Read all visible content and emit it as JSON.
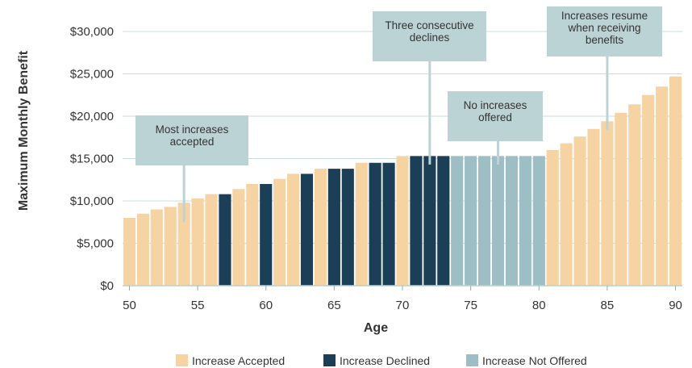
{
  "chart_data": {
    "type": "bar",
    "ylabel": "Maximum Monthly Benefit",
    "xlabel": "Age",
    "ylim": [
      0,
      30000
    ],
    "y_ticks": [
      "$0",
      "$5,000",
      "$10,000",
      "$15,000",
      "$20,000",
      "$25,000",
      "$30,000"
    ],
    "y_tick_values": [
      0,
      5000,
      10000,
      15000,
      20000,
      25000,
      30000
    ],
    "x_ticks": [
      "50",
      "55",
      "60",
      "65",
      "70",
      "75",
      "80",
      "85",
      "90"
    ],
    "x_tick_values": [
      50,
      55,
      60,
      65,
      70,
      75,
      80,
      85,
      90
    ],
    "grid": "horizontal",
    "legend_position": "bottom-center",
    "colors": {
      "Increase Accepted": "#f6d3a3",
      "Increase Declined": "#1b3f57",
      "Increase Not Offered": "#9cbec4",
      "annotation_box": "#bcd3d6"
    },
    "legend": [
      "Increase Accepted",
      "Increase Declined",
      "Increase Not Offered"
    ],
    "bars": [
      {
        "age": 50,
        "value": 8000,
        "status": "Increase Accepted"
      },
      {
        "age": 51,
        "value": 8500,
        "status": "Increase Accepted"
      },
      {
        "age": 52,
        "value": 9000,
        "status": "Increase Accepted"
      },
      {
        "age": 53,
        "value": 9300,
        "status": "Increase Accepted"
      },
      {
        "age": 54,
        "value": 9800,
        "status": "Increase Accepted"
      },
      {
        "age": 55,
        "value": 10300,
        "status": "Increase Accepted"
      },
      {
        "age": 56,
        "value": 10800,
        "status": "Increase Accepted"
      },
      {
        "age": 57,
        "value": 10800,
        "status": "Increase Declined"
      },
      {
        "age": 58,
        "value": 11400,
        "status": "Increase Accepted"
      },
      {
        "age": 59,
        "value": 12000,
        "status": "Increase Accepted"
      },
      {
        "age": 60,
        "value": 12000,
        "status": "Increase Declined"
      },
      {
        "age": 61,
        "value": 12600,
        "status": "Increase Accepted"
      },
      {
        "age": 62,
        "value": 13200,
        "status": "Increase Accepted"
      },
      {
        "age": 63,
        "value": 13200,
        "status": "Increase Declined"
      },
      {
        "age": 64,
        "value": 13800,
        "status": "Increase Accepted"
      },
      {
        "age": 65,
        "value": 13800,
        "status": "Increase Declined"
      },
      {
        "age": 66,
        "value": 13800,
        "status": "Increase Declined"
      },
      {
        "age": 67,
        "value": 14500,
        "status": "Increase Accepted"
      },
      {
        "age": 68,
        "value": 14500,
        "status": "Increase Declined"
      },
      {
        "age": 69,
        "value": 14500,
        "status": "Increase Declined"
      },
      {
        "age": 70,
        "value": 15300,
        "status": "Increase Accepted"
      },
      {
        "age": 71,
        "value": 15300,
        "status": "Increase Declined"
      },
      {
        "age": 72,
        "value": 15300,
        "status": "Increase Declined"
      },
      {
        "age": 73,
        "value": 15300,
        "status": "Increase Declined"
      },
      {
        "age": 74,
        "value": 15300,
        "status": "Increase Not Offered"
      },
      {
        "age": 75,
        "value": 15300,
        "status": "Increase Not Offered"
      },
      {
        "age": 76,
        "value": 15300,
        "status": "Increase Not Offered"
      },
      {
        "age": 77,
        "value": 15300,
        "status": "Increase Not Offered"
      },
      {
        "age": 78,
        "value": 15300,
        "status": "Increase Not Offered"
      },
      {
        "age": 79,
        "value": 15300,
        "status": "Increase Not Offered"
      },
      {
        "age": 80,
        "value": 15300,
        "status": "Increase Not Offered"
      },
      {
        "age": 81,
        "value": 16000,
        "status": "Increase Accepted"
      },
      {
        "age": 82,
        "value": 16800,
        "status": "Increase Accepted"
      },
      {
        "age": 83,
        "value": 17600,
        "status": "Increase Accepted"
      },
      {
        "age": 84,
        "value": 18500,
        "status": "Increase Accepted"
      },
      {
        "age": 85,
        "value": 19400,
        "status": "Increase Accepted"
      },
      {
        "age": 86,
        "value": 20400,
        "status": "Increase Accepted"
      },
      {
        "age": 87,
        "value": 21400,
        "status": "Increase Accepted"
      },
      {
        "age": 88,
        "value": 22500,
        "status": "Increase Accepted"
      },
      {
        "age": 89,
        "value": 23500,
        "status": "Increase Accepted"
      },
      {
        "age": 90,
        "value": 24700,
        "status": "Increase Accepted"
      }
    ],
    "annotations": [
      {
        "lines": [
          "Most increases",
          "accepted"
        ],
        "pointer_age": 54,
        "pointer_value": 7500
      },
      {
        "lines": [
          "Three consecutive",
          "declines"
        ],
        "pointer_age": 72,
        "pointer_value": 14300
      },
      {
        "lines": [
          "No increases",
          "offered"
        ],
        "pointer_age": 77,
        "pointer_value": 14300
      },
      {
        "lines": [
          "Increases resume",
          "when receiving",
          "benefits"
        ],
        "pointer_age": 85,
        "pointer_value": 18400
      }
    ]
  }
}
